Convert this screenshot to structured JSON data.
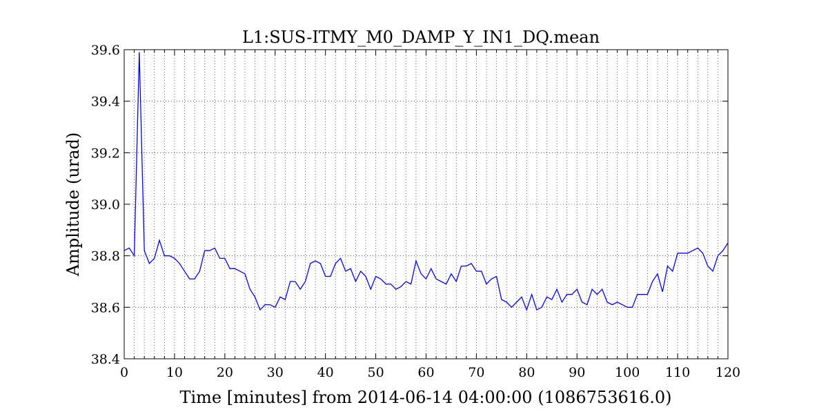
{
  "chart_data": {
    "type": "line",
    "title": "L1:SUS-ITMY_M0_DAMP_Y_IN1_DQ.mean",
    "xlabel": "Time [minutes] from 2014-06-14 04:00:00 (1086753616.0)",
    "ylabel": "Amplitude (urad)",
    "xlim": [
      0,
      120
    ],
    "ylim": [
      38.4,
      39.6
    ],
    "x_major_ticks": [
      0,
      10,
      20,
      30,
      40,
      50,
      60,
      70,
      80,
      90,
      100,
      110,
      120
    ],
    "x_minor_step": 2,
    "y_ticks": [
      38.4,
      38.6,
      38.8,
      39.0,
      39.2,
      39.4,
      39.6
    ],
    "grid": true,
    "series": [
      {
        "color": "#0000ff",
        "x": [
          0,
          1,
          2,
          3,
          4,
          5,
          6,
          7,
          8,
          9,
          10,
          11,
          12,
          13,
          14,
          15,
          16,
          17,
          18,
          19,
          20,
          21,
          22,
          23,
          24,
          25,
          26,
          27,
          28,
          29,
          30,
          31,
          32,
          33,
          34,
          35,
          36,
          37,
          38,
          39,
          40,
          41,
          42,
          43,
          44,
          45,
          46,
          47,
          48,
          49,
          50,
          51,
          52,
          53,
          54,
          55,
          56,
          57,
          58,
          59,
          60,
          61,
          62,
          63,
          64,
          65,
          66,
          67,
          68,
          69,
          70,
          71,
          72,
          73,
          74,
          75,
          76,
          77,
          78,
          79,
          80,
          81,
          82,
          83,
          84,
          85,
          86,
          87,
          88,
          89,
          90,
          91,
          92,
          93,
          94,
          95,
          96,
          97,
          98,
          99,
          100,
          101,
          102,
          103,
          104,
          105,
          106,
          107,
          108,
          109,
          110,
          111,
          112,
          113,
          114,
          115,
          116,
          117,
          118,
          119,
          120
        ],
        "y": [
          38.82,
          38.83,
          38.8,
          39.59,
          38.82,
          38.77,
          38.79,
          38.86,
          38.8,
          38.8,
          38.79,
          38.77,
          38.74,
          38.71,
          38.71,
          38.74,
          38.82,
          38.82,
          38.83,
          38.79,
          38.79,
          38.75,
          38.75,
          38.74,
          38.73,
          38.67,
          38.64,
          38.59,
          38.61,
          38.61,
          38.6,
          38.64,
          38.63,
          38.7,
          38.7,
          38.67,
          38.7,
          38.77,
          38.78,
          38.77,
          38.72,
          38.72,
          38.77,
          38.79,
          38.74,
          38.75,
          38.7,
          38.74,
          38.72,
          38.67,
          38.72,
          38.71,
          38.69,
          38.69,
          38.67,
          38.68,
          38.7,
          38.69,
          38.78,
          38.73,
          38.71,
          38.75,
          38.71,
          38.7,
          38.69,
          38.73,
          38.7,
          38.76,
          38.76,
          38.77,
          38.74,
          38.74,
          38.69,
          38.71,
          38.72,
          38.63,
          38.62,
          38.6,
          38.62,
          38.64,
          38.59,
          38.65,
          38.59,
          38.6,
          38.64,
          38.63,
          38.67,
          38.62,
          38.65,
          38.65,
          38.67,
          38.62,
          38.61,
          38.67,
          38.65,
          38.67,
          38.62,
          38.61,
          38.62,
          38.61,
          38.6,
          38.6,
          38.65,
          38.65,
          38.65,
          38.7,
          38.73,
          38.66,
          38.76,
          38.74,
          38.81,
          38.81,
          38.81,
          38.82,
          38.83,
          38.81,
          38.76,
          38.74,
          38.8,
          38.82,
          38.85
        ]
      }
    ]
  }
}
